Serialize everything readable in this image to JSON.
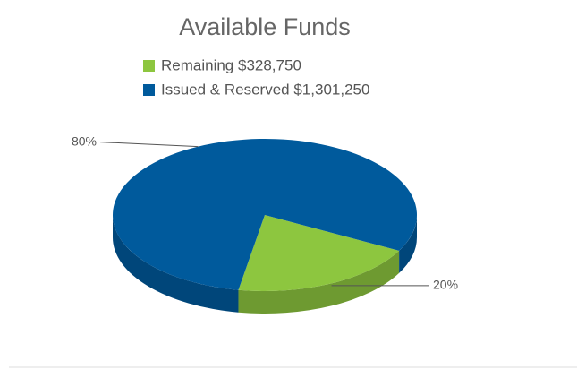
{
  "chart_data": {
    "type": "pie",
    "title": "Available Funds",
    "categories": [
      "Remaining $328,750",
      "Issued & Reserved $1,301,250"
    ],
    "values": [
      20,
      80
    ],
    "value_labels": [
      "20%",
      "80%"
    ],
    "colors": [
      "#8dc63f",
      "#005a9c"
    ]
  }
}
